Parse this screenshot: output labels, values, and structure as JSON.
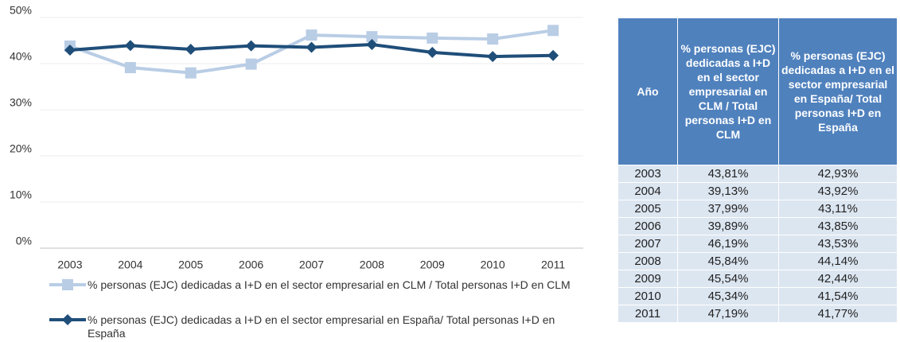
{
  "chart_data": {
    "type": "line",
    "categories": [
      "2003",
      "2004",
      "2005",
      "2006",
      "2007",
      "2008",
      "2009",
      "2010",
      "2011"
    ],
    "series": [
      {
        "name": "% personas (EJC) dedicadas a I+D en el sector empresarial en CLM / Total personas I+D en CLM",
        "color": "#b9cde5",
        "marker": "square",
        "values": [
          43.81,
          39.13,
          37.99,
          39.89,
          46.19,
          45.84,
          45.54,
          45.34,
          47.19
        ]
      },
      {
        "name": "% personas (EJC) dedicadas a I+D en el sector empresarial en España/ Total personas I+D en España",
        "color": "#1f4e79",
        "marker": "diamond",
        "values": [
          42.93,
          43.92,
          43.11,
          43.85,
          43.53,
          44.14,
          42.44,
          41.54,
          41.77
        ]
      }
    ],
    "ylim": [
      0,
      50
    ],
    "yticks": [
      {
        "value": 0,
        "label": "0%"
      },
      {
        "value": 10,
        "label": "10%"
      },
      {
        "value": 20,
        "label": "20%"
      },
      {
        "value": 30,
        "label": "30%"
      },
      {
        "value": 40,
        "label": "40%"
      },
      {
        "value": 50,
        "label": "50%"
      }
    ],
    "grid": true
  },
  "table": {
    "header": [
      "Año",
      "% personas (EJC) dedicadas a I+D en el sector empresarial en CLM / Total personas I+D en CLM",
      "% personas (EJC) dedicadas a I+D en el sector empresarial en España/ Total personas I+D en España"
    ],
    "rows": [
      [
        "2003",
        "43,81%",
        "42,93%"
      ],
      [
        "2004",
        "39,13%",
        "43,92%"
      ],
      [
        "2005",
        "37,99%",
        "43,11%"
      ],
      [
        "2006",
        "39,89%",
        "43,85%"
      ],
      [
        "2007",
        "46,19%",
        "43,53%"
      ],
      [
        "2008",
        "45,84%",
        "44,14%"
      ],
      [
        "2009",
        "45,54%",
        "42,44%"
      ],
      [
        "2010",
        "45,34%",
        "41,54%"
      ],
      [
        "2011",
        "47,19%",
        "41,77%"
      ]
    ]
  }
}
